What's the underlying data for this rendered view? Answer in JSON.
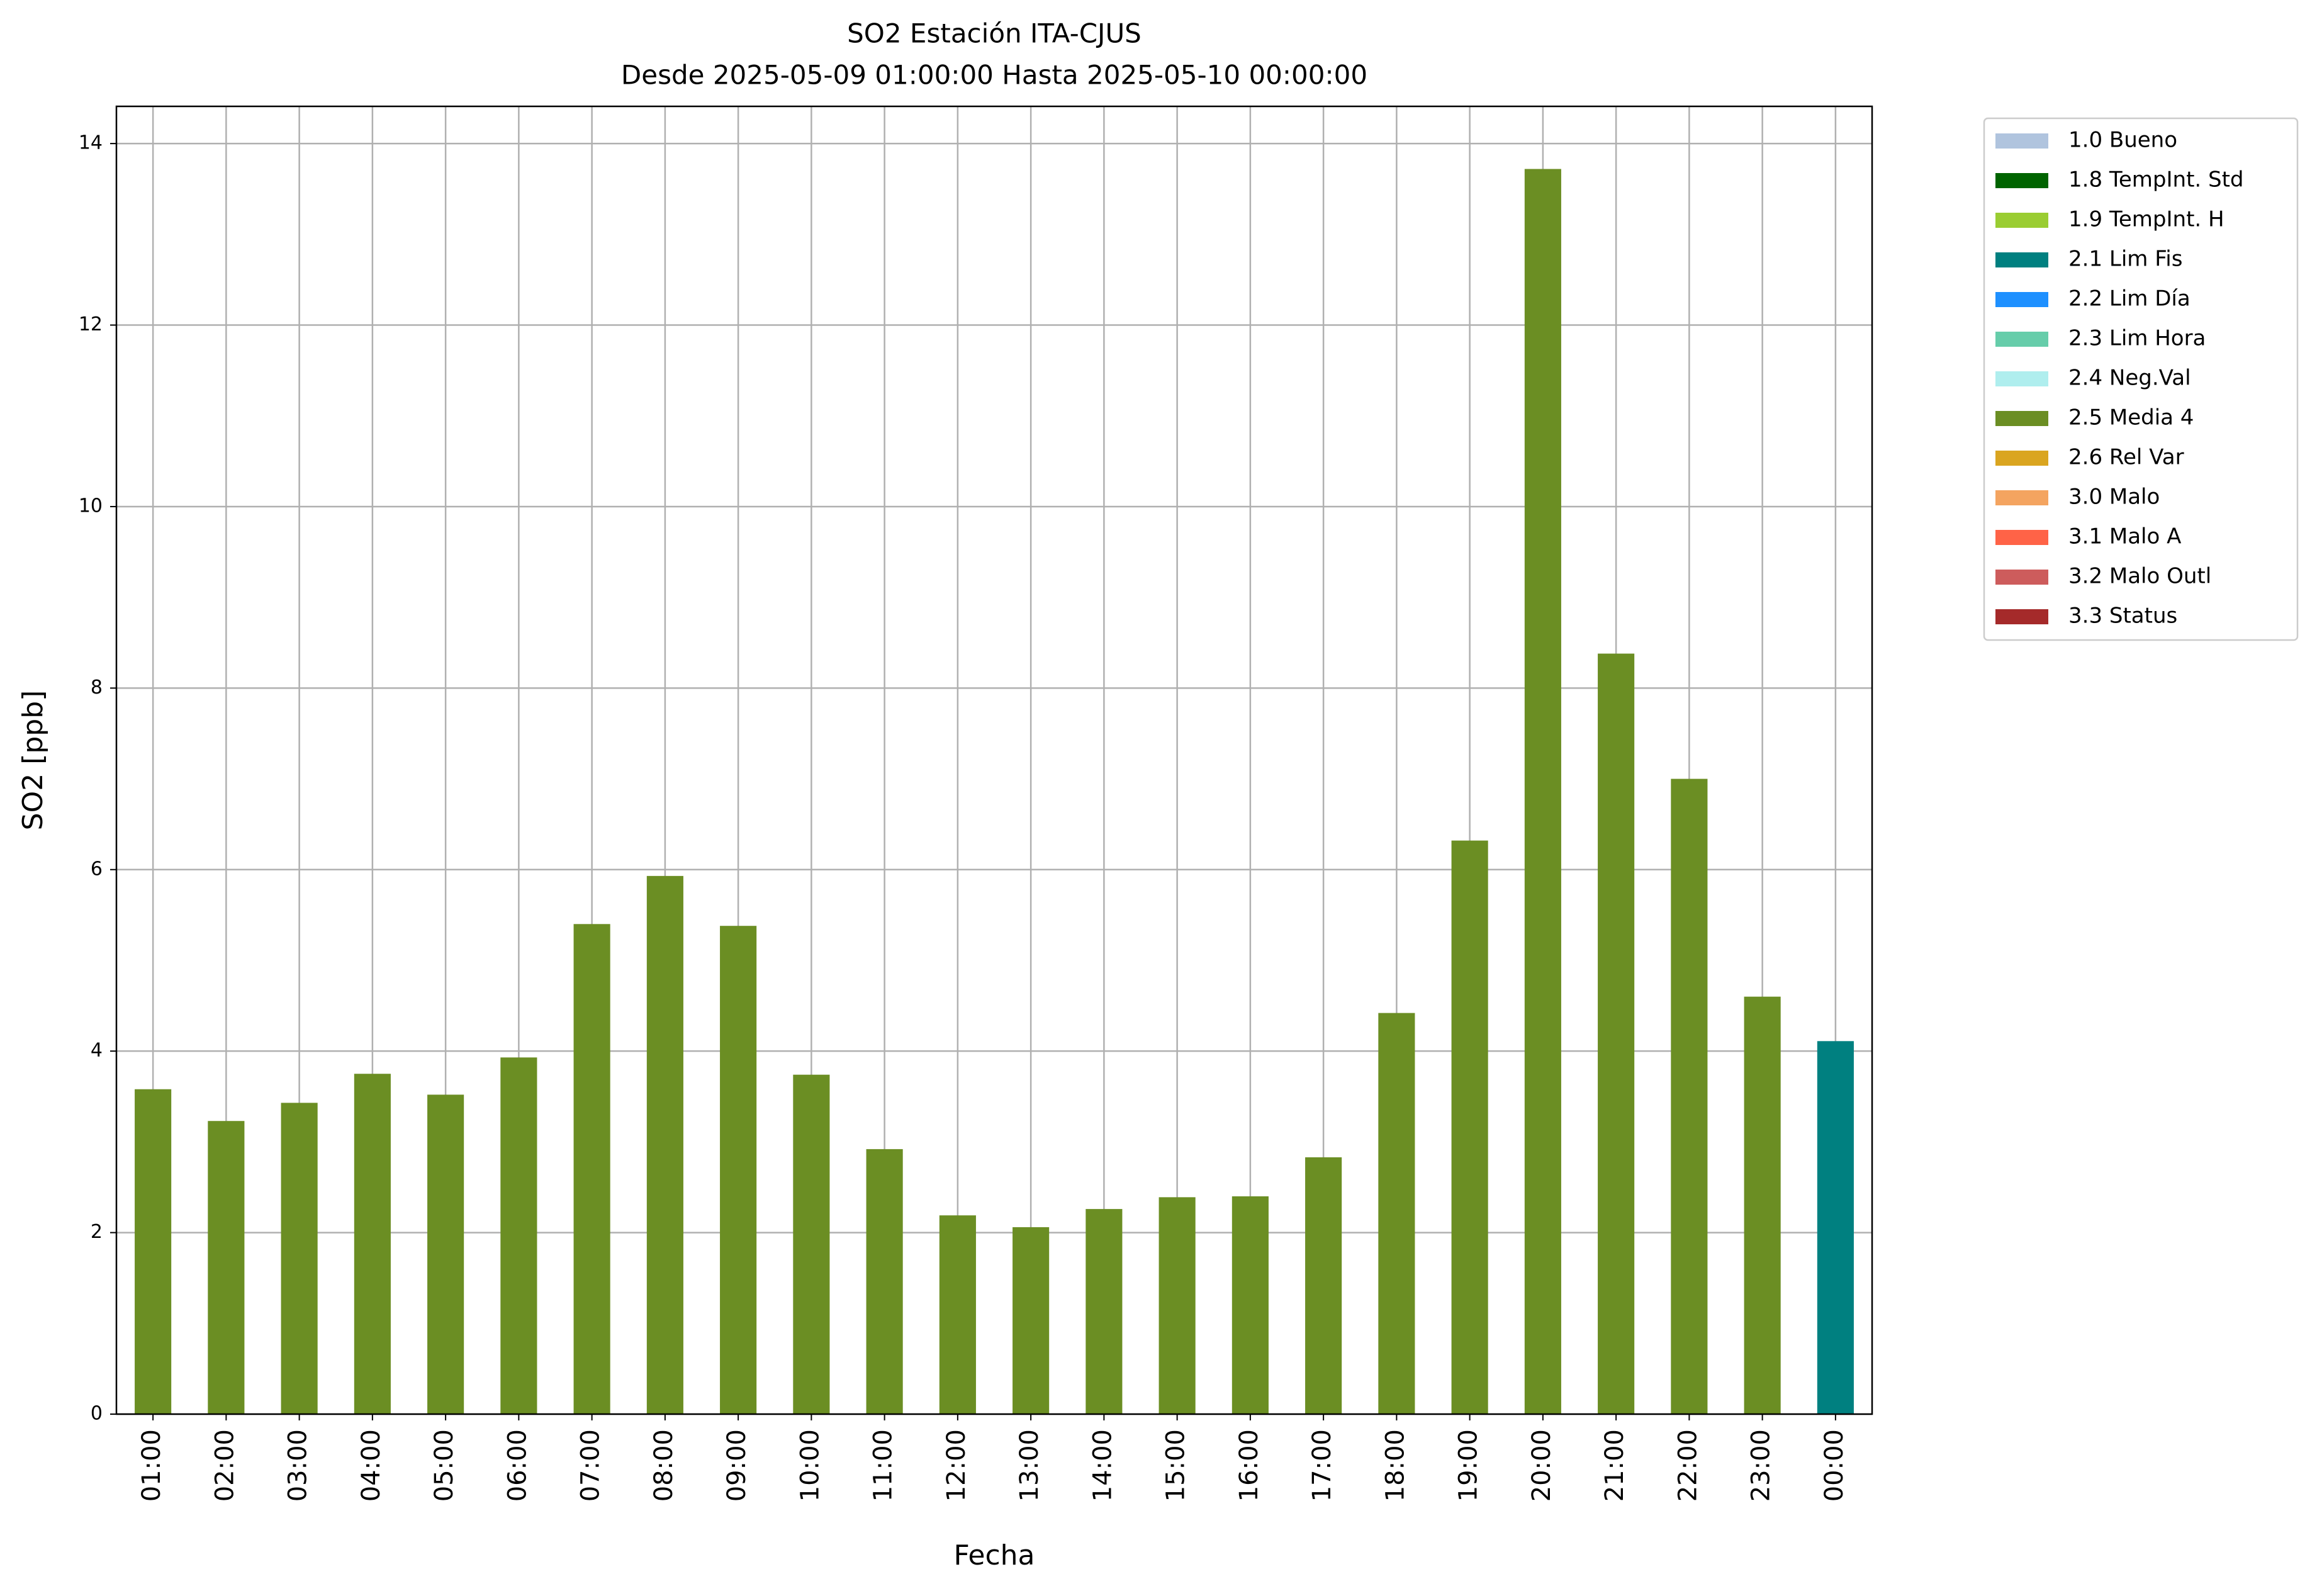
{
  "chart_data": {
    "type": "bar",
    "stacked": true,
    "title": "SO2 Estación ITA-CJUS",
    "subtitle": "Desde 2025-05-09 01:00:00 Hasta 2025-05-10 00:00:00",
    "x_label": "Fecha",
    "y_label": "SO2 [ppb]",
    "categories": [
      "01:00",
      "02:00",
      "03:00",
      "04:00",
      "05:00",
      "06:00",
      "07:00",
      "08:00",
      "09:00",
      "10:00",
      "11:00",
      "12:00",
      "13:00",
      "14:00",
      "15:00",
      "16:00",
      "17:00",
      "18:00",
      "19:00",
      "20:00",
      "21:00",
      "22:00",
      "23:00",
      "00:00"
    ],
    "ylim": [
      0,
      14.41
    ],
    "yticks": [
      0,
      2,
      4,
      6,
      8,
      10,
      12,
      14
    ],
    "grid": true,
    "legend": "outside-upper-right",
    "series": [
      {
        "name": "1.0 Bueno",
        "color": "#b0c4de",
        "values": [
          null,
          null,
          null,
          null,
          null,
          null,
          null,
          null,
          null,
          null,
          null,
          null,
          null,
          null,
          null,
          null,
          null,
          null,
          null,
          null,
          null,
          null,
          null,
          null
        ]
      },
      {
        "name": "1.8 TempInt. Std",
        "color": "#006400",
        "values": [
          null,
          null,
          null,
          null,
          null,
          null,
          null,
          null,
          null,
          null,
          null,
          null,
          null,
          null,
          null,
          null,
          null,
          null,
          null,
          null,
          null,
          null,
          null,
          null
        ]
      },
      {
        "name": "1.9 TempInt. H",
        "color": "#9acd32",
        "values": [
          null,
          null,
          null,
          null,
          null,
          null,
          null,
          null,
          null,
          null,
          null,
          null,
          null,
          null,
          null,
          null,
          null,
          null,
          null,
          null,
          null,
          null,
          null,
          null
        ]
      },
      {
        "name": "2.1 Lim Fis",
        "color": "#008080",
        "values": [
          null,
          null,
          null,
          null,
          null,
          null,
          null,
          null,
          null,
          null,
          null,
          null,
          null,
          null,
          null,
          null,
          null,
          null,
          null,
          null,
          null,
          null,
          null,
          4.11
        ]
      },
      {
        "name": "2.2 Lim Día",
        "color": "#1e90ff",
        "values": [
          null,
          null,
          null,
          null,
          null,
          null,
          null,
          null,
          null,
          null,
          null,
          null,
          null,
          null,
          null,
          null,
          null,
          null,
          null,
          null,
          null,
          null,
          null,
          null
        ]
      },
      {
        "name": "2.3 Lim Hora",
        "color": "#66cdaa",
        "values": [
          null,
          null,
          null,
          null,
          null,
          null,
          null,
          null,
          null,
          null,
          null,
          null,
          null,
          null,
          null,
          null,
          null,
          null,
          null,
          null,
          null,
          null,
          null,
          null
        ]
      },
      {
        "name": "2.4 Neg.Val",
        "color": "#afeeee",
        "values": [
          null,
          null,
          null,
          null,
          null,
          null,
          null,
          null,
          null,
          null,
          null,
          null,
          null,
          null,
          null,
          null,
          null,
          null,
          null,
          null,
          null,
          null,
          null,
          null
        ]
      },
      {
        "name": "2.5 Media 4",
        "color": "#6b8e23",
        "values": [
          3.58,
          3.23,
          3.43,
          3.75,
          3.52,
          3.93,
          5.4,
          5.93,
          5.38,
          3.74,
          2.92,
          2.19,
          2.06,
          2.26,
          2.39,
          2.4,
          2.83,
          4.42,
          6.32,
          13.72,
          8.38,
          7.0,
          4.6,
          null
        ]
      },
      {
        "name": "2.6 Rel Var",
        "color": "#daa520",
        "values": [
          null,
          null,
          null,
          null,
          null,
          null,
          null,
          null,
          null,
          null,
          null,
          null,
          null,
          null,
          null,
          null,
          null,
          null,
          null,
          null,
          null,
          null,
          null,
          null
        ]
      },
      {
        "name": "3.0 Malo",
        "color": "#f4a460",
        "values": [
          null,
          null,
          null,
          null,
          null,
          null,
          null,
          null,
          null,
          null,
          null,
          null,
          null,
          null,
          null,
          null,
          null,
          null,
          null,
          null,
          null,
          null,
          null,
          null
        ]
      },
      {
        "name": "3.1 Malo A",
        "color": "#ff6347",
        "values": [
          null,
          null,
          null,
          null,
          null,
          null,
          null,
          null,
          null,
          null,
          null,
          null,
          null,
          null,
          null,
          null,
          null,
          null,
          null,
          null,
          null,
          null,
          null,
          null
        ]
      },
      {
        "name": "3.2 Malo Outl",
        "color": "#cd5c5c",
        "values": [
          null,
          null,
          null,
          null,
          null,
          null,
          null,
          null,
          null,
          null,
          null,
          null,
          null,
          null,
          null,
          null,
          null,
          null,
          null,
          null,
          null,
          null,
          null,
          null
        ]
      },
      {
        "name": "3.3 Status",
        "color": "#a52a2a",
        "values": [
          null,
          null,
          null,
          null,
          null,
          null,
          null,
          null,
          null,
          null,
          null,
          null,
          null,
          null,
          null,
          null,
          null,
          null,
          null,
          null,
          null,
          null,
          null,
          null
        ]
      }
    ]
  }
}
